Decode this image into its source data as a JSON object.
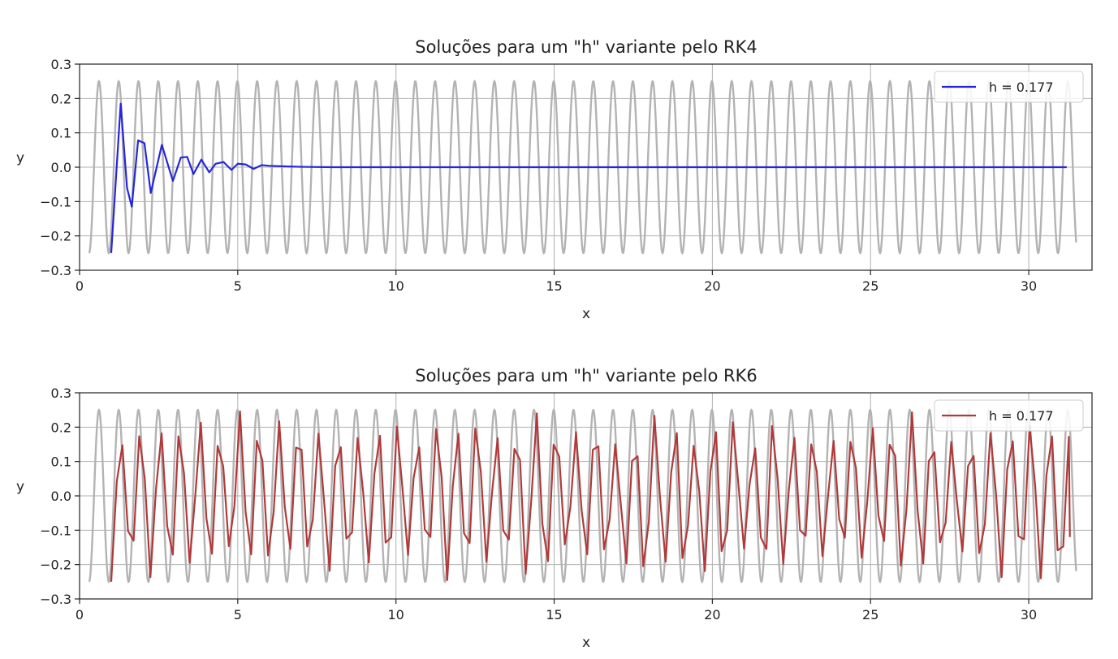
{
  "chart_data": [
    {
      "type": "line",
      "title": "Soluções para um \"h\" variante pelo RK4",
      "xlabel": "x",
      "ylabel": "y",
      "xlim": [
        0,
        32
      ],
      "ylim": [
        -0.3,
        0.3
      ],
      "xticks": [
        "0",
        "5",
        "10",
        "15",
        "20",
        "25",
        "30"
      ],
      "yticks": [
        "−0.3",
        "−0.2",
        "−0.1",
        "0.0",
        "0.1",
        "0.2",
        "0.3"
      ],
      "grid": true,
      "legend_position": "upper right",
      "reference": {
        "color": "#b3b3b3",
        "amplitude": 0.25,
        "frequency_cycles_per_unit": 1.6,
        "x_start": 0.3,
        "x_end": 31.5
      },
      "series": [
        {
          "name": "h = 0.177",
          "color": "#2525dd",
          "x": [
            1.0,
            1.3,
            1.5,
            1.65,
            1.85,
            2.05,
            2.25,
            2.6,
            2.95,
            3.2,
            3.4,
            3.6,
            3.85,
            4.1,
            4.3,
            4.55,
            4.8,
            5.0,
            5.25,
            5.5,
            5.75,
            6.0,
            6.3,
            6.6,
            7.0,
            8.0,
            31.2
          ],
          "y": [
            -0.25,
            0.185,
            -0.06,
            -0.115,
            0.078,
            0.07,
            -0.075,
            0.065,
            -0.04,
            0.028,
            0.03,
            -0.02,
            0.022,
            -0.015,
            0.01,
            0.015,
            -0.008,
            0.01,
            0.008,
            -0.005,
            0.006,
            0.004,
            0.003,
            0.002,
            0.001,
            0.0,
            0.0
          ]
        }
      ]
    },
    {
      "type": "line",
      "title": "Soluções para um \"h\" variante pelo RK6",
      "xlabel": "x",
      "ylabel": "y",
      "xlim": [
        0,
        32
      ],
      "ylim": [
        -0.3,
        0.3
      ],
      "xticks": [
        "0",
        "5",
        "10",
        "15",
        "20",
        "25",
        "30"
      ],
      "yticks": [
        "−0.3",
        "−0.2",
        "−0.1",
        "0.0",
        "0.1",
        "0.2",
        "0.3"
      ],
      "grid": true,
      "legend_position": "upper right",
      "reference": {
        "color": "#b3b3b3",
        "amplitude": 0.25,
        "frequency_cycles_per_unit": 1.6,
        "x_start": 0.3,
        "x_end": 31.5
      },
      "series": [
        {
          "name": "h = 0.177",
          "color": "#b03a3a",
          "x_start": 1.0,
          "h": 0.177,
          "x_end": 31.3,
          "y_start": -0.25,
          "y_end": -0.12,
          "amplitude_range": [
            0.15,
            0.25
          ],
          "frequency_cycles_per_unit": 1.6
        }
      ]
    }
  ]
}
